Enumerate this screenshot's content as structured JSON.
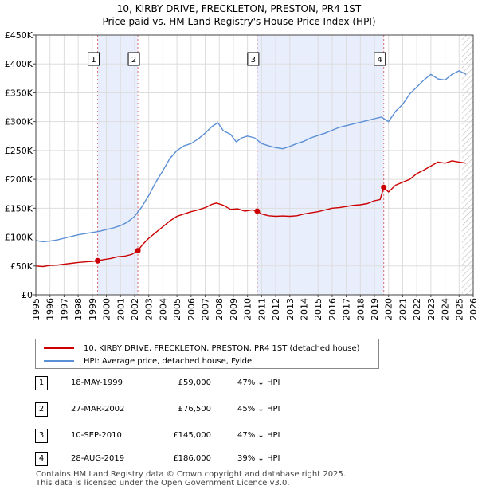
{
  "title_line1": "10, KIRBY DRIVE, FRECKLETON, PRESTON, PR4 1ST",
  "title_line2": "Price paid vs. HM Land Registry's House Price Index (HPI)",
  "chart_data": {
    "type": "line",
    "title": "10, KIRBY DRIVE, FRECKLETON, PRESTON, PR4 1ST — Price paid vs. HM Land Registry's House Price Index (HPI)",
    "xlim": [
      1995,
      2026
    ],
    "ylim": [
      0,
      450000
    ],
    "y_ticks": [
      0,
      50000,
      100000,
      150000,
      200000,
      250000,
      300000,
      350000,
      400000,
      450000
    ],
    "y_tick_labels": [
      "£0",
      "£50K",
      "£100K",
      "£150K",
      "£200K",
      "£250K",
      "£300K",
      "£350K",
      "£400K",
      "£450K"
    ],
    "x_ticks": [
      1995,
      1996,
      1997,
      1998,
      1999,
      2000,
      2001,
      2002,
      2003,
      2004,
      2005,
      2006,
      2007,
      2008,
      2009,
      2010,
      2011,
      2012,
      2013,
      2014,
      2015,
      2016,
      2017,
      2018,
      2019,
      2020,
      2021,
      2022,
      2023,
      2024,
      2025,
      2026
    ],
    "x_tick_labels": [
      "1995",
      "1996",
      "1997",
      "1998",
      "1999",
      "2000",
      "2001",
      "2002",
      "2003",
      "2004",
      "2005",
      "2006",
      "2007",
      "2008",
      "2009",
      "2010",
      "2011",
      "2012",
      "2013",
      "2014",
      "2015",
      "2016",
      "2017",
      "2018",
      "2019",
      "2020",
      "2021",
      "2022",
      "2023",
      "2024",
      "2025",
      "2026"
    ],
    "grid": true,
    "shaded_ranges": [
      [
        1999.38,
        2002.23
      ],
      [
        2010.69,
        2019.66
      ]
    ],
    "future_hatch_from": 2025.2,
    "series": [
      {
        "name": "10, KIRBY DRIVE, FRECKLETON, PRESTON, PR4 1ST (detached house)",
        "color": "#cc0000",
        "x": [
          1995.0,
          1995.5,
          1996.0,
          1996.5,
          1997.0,
          1997.5,
          1998.0,
          1998.5,
          1999.0,
          1999.38,
          1999.8,
          2000.3,
          2000.8,
          2001.3,
          2001.8,
          2002.23,
          2002.6,
          2003.0,
          2003.5,
          2004.0,
          2004.5,
          2005.0,
          2005.5,
          2006.0,
          2006.5,
          2007.0,
          2007.5,
          2007.8,
          2008.3,
          2008.8,
          2009.3,
          2009.8,
          2010.3,
          2010.69,
          2011.0,
          2011.5,
          2012.0,
          2012.5,
          2013.0,
          2013.5,
          2014.0,
          2014.5,
          2015.0,
          2015.5,
          2016.0,
          2016.5,
          2017.0,
          2017.5,
          2018.0,
          2018.5,
          2019.0,
          2019.4,
          2019.66,
          2020.0,
          2020.5,
          2021.0,
          2021.5,
          2022.0,
          2022.5,
          2023.0,
          2023.5,
          2024.0,
          2024.5,
          2025.0,
          2025.5
        ],
        "values": [
          50000,
          49000,
          51000,
          51500,
          53000,
          54500,
          56000,
          57000,
          58000,
          59000,
          61000,
          63000,
          66000,
          67000,
          70000,
          76500,
          88000,
          98000,
          108000,
          118000,
          128000,
          136000,
          140000,
          144000,
          147000,
          151000,
          157000,
          159000,
          155000,
          148000,
          149000,
          145000,
          147000,
          145000,
          140000,
          137000,
          136000,
          136500,
          136000,
          137000,
          140000,
          142000,
          144000,
          147000,
          150000,
          151000,
          153000,
          155000,
          156000,
          158000,
          163000,
          165000,
          186000,
          178000,
          190000,
          195000,
          200000,
          210000,
          216000,
          223000,
          230000,
          228000,
          232000,
          230000,
          228000
        ]
      },
      {
        "name": "HPI: Average price, detached house, Fylde",
        "color": "#5b8fd6",
        "x": [
          1995.0,
          1995.5,
          1996.0,
          1996.5,
          1997.0,
          1997.5,
          1998.0,
          1998.5,
          1999.0,
          1999.5,
          2000.0,
          2000.5,
          2001.0,
          2001.5,
          2002.0,
          2002.5,
          2003.0,
          2003.5,
          2004.0,
          2004.5,
          2005.0,
          2005.5,
          2006.0,
          2006.5,
          2007.0,
          2007.5,
          2007.9,
          2008.3,
          2008.8,
          2009.2,
          2009.6,
          2010.0,
          2010.5,
          2011.0,
          2011.5,
          2012.0,
          2012.5,
          2013.0,
          2013.5,
          2014.0,
          2014.5,
          2015.0,
          2015.5,
          2016.0,
          2016.5,
          2017.0,
          2017.5,
          2018.0,
          2018.5,
          2019.0,
          2019.5,
          2020.0,
          2020.5,
          2021.0,
          2021.5,
          2022.0,
          2022.5,
          2023.0,
          2023.5,
          2024.0,
          2024.5,
          2025.0,
          2025.5
        ],
        "values": [
          94000,
          92000,
          93000,
          95000,
          98000,
          101000,
          104000,
          106000,
          108000,
          110000,
          113000,
          116000,
          120000,
          126000,
          136000,
          152000,
          172000,
          195000,
          215000,
          236000,
          250000,
          258000,
          262000,
          270000,
          280000,
          292000,
          298000,
          284000,
          278000,
          265000,
          272000,
          275000,
          272000,
          262000,
          258000,
          255000,
          253000,
          257000,
          262000,
          266000,
          272000,
          276000,
          280000,
          285000,
          290000,
          293000,
          296000,
          299000,
          302000,
          305000,
          308000,
          300000,
          318000,
          330000,
          348000,
          360000,
          372000,
          382000,
          374000,
          372000,
          382000,
          388000,
          382000
        ]
      }
    ],
    "sales": [
      {
        "id": "1",
        "x": 1999.38,
        "value": 59000
      },
      {
        "id": "2",
        "x": 2002.23,
        "value": 76500
      },
      {
        "id": "3",
        "x": 2010.69,
        "value": 145000
      },
      {
        "id": "4",
        "x": 2019.66,
        "value": 186000
      }
    ]
  },
  "legend": {
    "price_label": "10, KIRBY DRIVE, FRECKLETON, PRESTON, PR4 1ST (detached house)",
    "hpi_label": "HPI: Average price, detached house, Fylde"
  },
  "transactions": [
    {
      "id": "1",
      "date": "18-MAY-1999",
      "price": "£59,000",
      "hpi": "47% ↓ HPI"
    },
    {
      "id": "2",
      "date": "27-MAR-2002",
      "price": "£76,500",
      "hpi": "45% ↓ HPI"
    },
    {
      "id": "3",
      "date": "10-SEP-2010",
      "price": "£145,000",
      "hpi": "47% ↓ HPI"
    },
    {
      "id": "4",
      "date": "28-AUG-2019",
      "price": "£186,000",
      "hpi": "39% ↓ HPI"
    }
  ],
  "footer_line1": "Contains HM Land Registry data © Crown copyright and database right 2025.",
  "footer_line2": "This data is licensed under the Open Government Licence v3.0."
}
